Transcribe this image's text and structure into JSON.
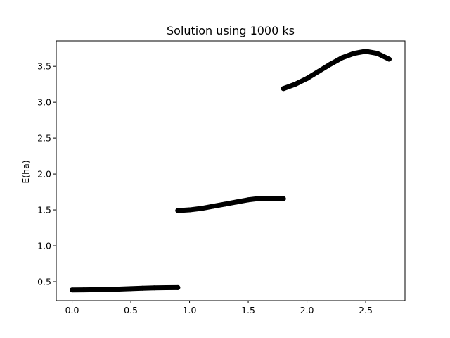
{
  "chart_data": {
    "type": "line",
    "title": "Solution using 1000 ks",
    "xlabel": "",
    "ylabel": "E(ha)",
    "xlim": [
      -0.135,
      2.835
    ],
    "ylim": [
      0.235,
      3.855
    ],
    "xticks": [
      0.0,
      0.5,
      1.0,
      1.5,
      2.0,
      2.5
    ],
    "xtick_labels": [
      "0.0",
      "0.5",
      "1.0",
      "1.5",
      "2.0",
      "2.5"
    ],
    "yticks": [
      0.5,
      1.0,
      1.5,
      2.0,
      2.5,
      3.0,
      3.5
    ],
    "ytick_labels": [
      "0.5",
      "1.0",
      "1.5",
      "2.0",
      "2.5",
      "3.0",
      "3.5"
    ],
    "grid": false,
    "series": [
      {
        "color": "#000000",
        "marker": "circle",
        "segments": [
          {
            "x": [
              0.0,
              0.1,
              0.2,
              0.3,
              0.4,
              0.5,
              0.6,
              0.7,
              0.8,
              0.9
            ],
            "y": [
              0.385,
              0.386,
              0.388,
              0.392,
              0.397,
              0.403,
              0.409,
              0.414,
              0.417,
              0.418
            ]
          },
          {
            "x": [
              0.9,
              1.0,
              1.1,
              1.2,
              1.3,
              1.4,
              1.5,
              1.6,
              1.7,
              1.8
            ],
            "y": [
              1.49,
              1.5,
              1.52,
              1.55,
              1.58,
              1.61,
              1.64,
              1.66,
              1.66,
              1.655
            ]
          },
          {
            "x": [
              1.8,
              1.9,
              2.0,
              2.1,
              2.2,
              2.3,
              2.4,
              2.5,
              2.6,
              2.7
            ],
            "y": [
              3.19,
              3.25,
              3.33,
              3.43,
              3.53,
              3.62,
              3.68,
              3.71,
              3.68,
              3.6
            ]
          }
        ]
      }
    ]
  }
}
